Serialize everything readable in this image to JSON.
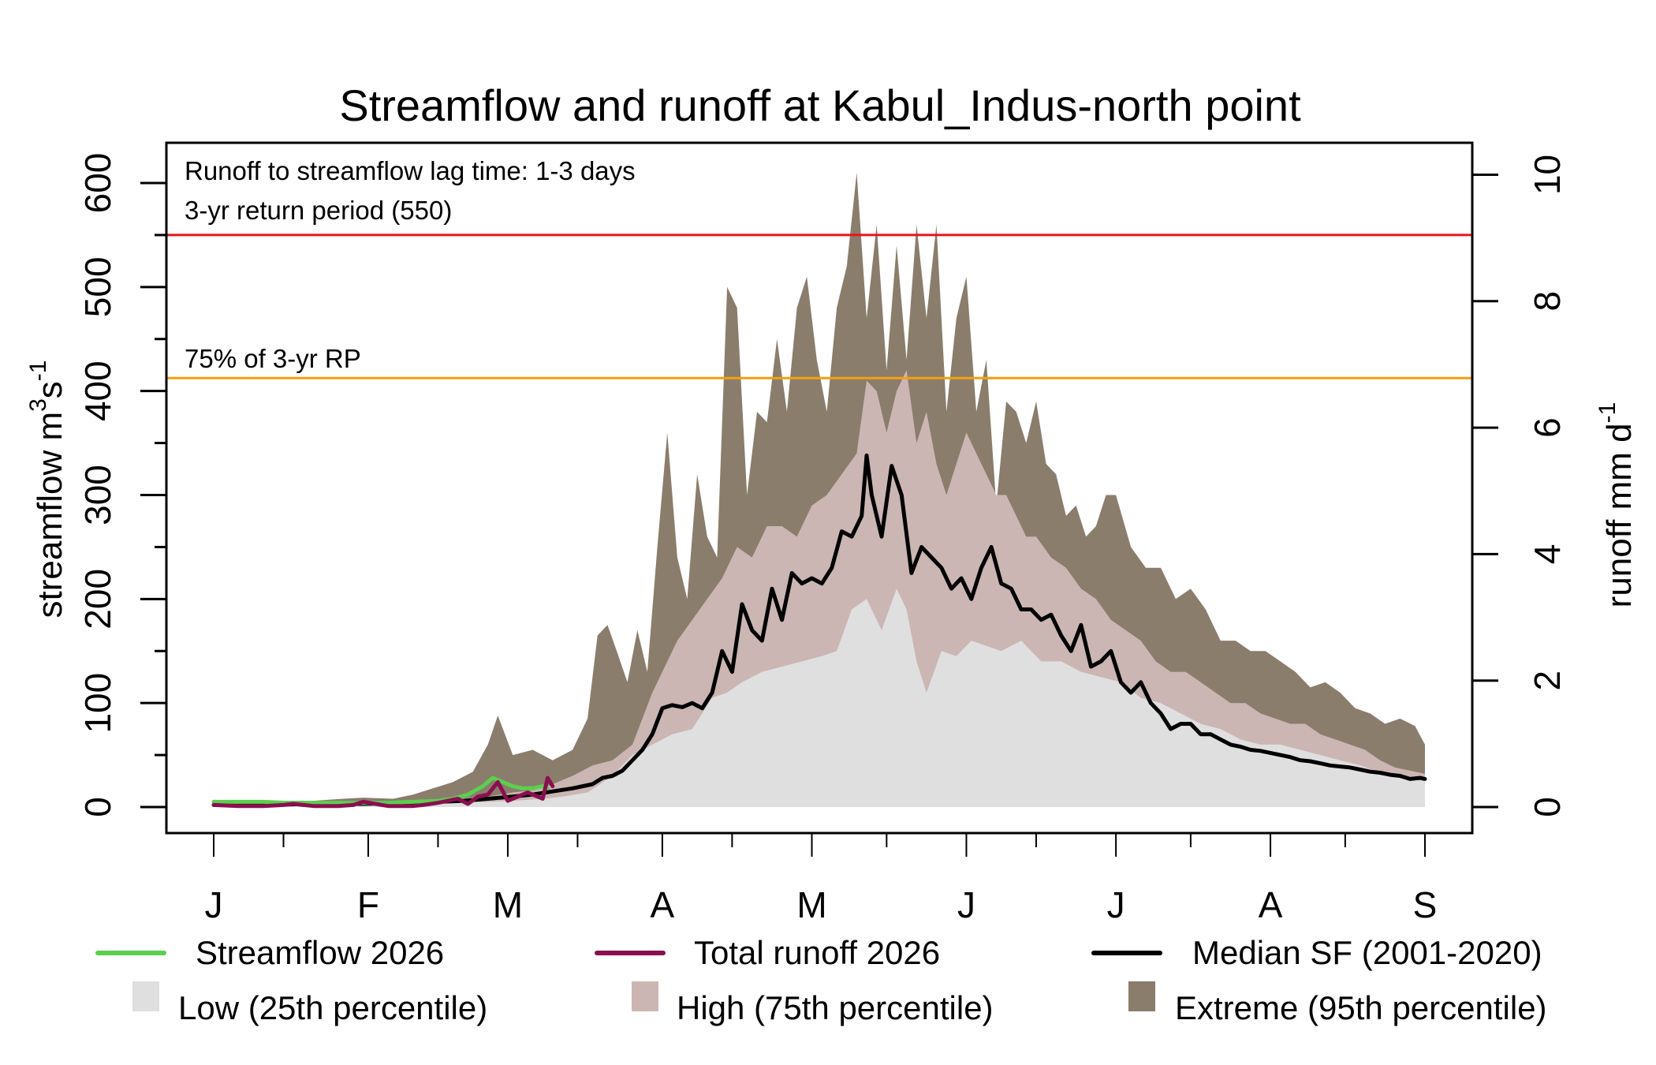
{
  "chart_data": {
    "type": "area",
    "title": "Streamflow and runoff at Kabul_Indus-north point",
    "ylabel": "streamflow m3s-1",
    "ylabel_parts": {
      "base": "streamflow m",
      "sup1": "3",
      "mid": "s",
      "sup2": "-1"
    },
    "y2label": "runoff mm d-1",
    "y2label_parts": {
      "base": "runoff mm d",
      "sup": "-1"
    },
    "xlabel": "",
    "ylim": [
      0,
      600
    ],
    "y_ticks": [
      0,
      100,
      200,
      300,
      400,
      500,
      600
    ],
    "y2lim": [
      0,
      10
    ],
    "y2_ticks": [
      0,
      2,
      4,
      6,
      8,
      10
    ],
    "y2_to_y_factor": 60.8,
    "x_unit": "day of year (0 = Jan 1)",
    "x_ticks_major": [
      {
        "day": 0,
        "label": "J"
      },
      {
        "day": 31,
        "label": "F"
      },
      {
        "day": 59,
        "label": "M"
      },
      {
        "day": 90,
        "label": "A"
      },
      {
        "day": 120,
        "label": "M"
      },
      {
        "day": 151,
        "label": "J"
      },
      {
        "day": 181,
        "label": "J"
      },
      {
        "day": 212,
        "label": "A"
      },
      {
        "day": 243,
        "label": "S"
      }
    ],
    "x_ticks_minor": [
      14,
      45,
      73,
      104,
      135,
      165,
      196,
      227
    ],
    "xlim": [
      -10,
      252
    ],
    "annotations": [
      {
        "text": "Runoff to streamflow lag time: 1-3 days"
      },
      {
        "text": "3-yr return period (550)"
      },
      {
        "text": "75% of 3-yr RP"
      }
    ],
    "hlines": [
      {
        "name": "3-yr return period",
        "value": 550,
        "color": "#e8141a"
      },
      {
        "name": "75% of 3-yr RP",
        "value": 412.5,
        "color": "#f5a10f"
      }
    ],
    "legend_position": "bottom",
    "legend": [
      {
        "label": "Streamflow 2026",
        "kind": "line",
        "color": "#5ccf4f"
      },
      {
        "label": "Total runoff 2026",
        "kind": "line",
        "color": "#8a0f4f"
      },
      {
        "label": "Median SF (2001-2020)",
        "kind": "line",
        "color": "#000000"
      },
      {
        "label": "Low (25th percentile)",
        "kind": "fill",
        "color": "#dfdfdf"
      },
      {
        "label": "High (75th percentile)",
        "kind": "fill",
        "color": "#cbb6b4"
      },
      {
        "label": "Extreme (95th percentile)",
        "kind": "fill",
        "color": "#8a7d6c"
      }
    ],
    "series": [
      {
        "name": "Extreme (95th percentile)",
        "color": "#8a7d6c",
        "days": [
          0,
          10,
          20,
          26,
          30,
          36,
          40,
          44,
          48,
          52,
          55,
          57,
          60,
          64,
          68,
          72,
          75,
          77,
          79,
          81,
          83,
          85,
          87,
          89,
          91,
          93,
          95,
          97,
          99,
          101,
          103,
          105,
          107,
          109,
          111,
          113,
          115,
          117,
          119,
          121,
          123,
          125,
          127,
          129,
          131,
          133,
          135,
          137,
          139,
          141,
          143,
          145,
          147,
          149,
          151,
          153,
          155,
          157,
          159,
          161,
          163,
          165,
          167,
          169,
          171,
          173,
          175,
          177,
          179,
          181,
          184,
          187,
          190,
          193,
          196,
          199,
          202,
          205,
          208,
          211,
          214,
          217,
          220,
          223,
          226,
          229,
          232,
          235,
          238,
          241,
          243
        ],
        "values": [
          6,
          6,
          6,
          8,
          9,
          8,
          12,
          18,
          24,
          34,
          60,
          88,
          50,
          55,
          45,
          55,
          85,
          165,
          175,
          148,
          120,
          170,
          130,
          250,
          360,
          240,
          200,
          320,
          260,
          240,
          500,
          480,
          300,
          380,
          370,
          450,
          380,
          480,
          510,
          430,
          380,
          480,
          520,
          610,
          470,
          560,
          420,
          540,
          430,
          560,
          470,
          560,
          380,
          470,
          510,
          380,
          430,
          290,
          390,
          380,
          350,
          390,
          330,
          320,
          280,
          290,
          260,
          270,
          300,
          300,
          250,
          230,
          230,
          200,
          210,
          190,
          160,
          160,
          150,
          150,
          140,
          130,
          115,
          120,
          110,
          95,
          90,
          80,
          85,
          78,
          60
        ]
      },
      {
        "name": "High (75th percentile)",
        "color": "#cbb6b4",
        "days": [
          0,
          10,
          20,
          30,
          40,
          48,
          55,
          60,
          64,
          68,
          72,
          76,
          80,
          84,
          88,
          90,
          93,
          96,
          99,
          102,
          105,
          108,
          111,
          114,
          117,
          120,
          123,
          126,
          129,
          131,
          133,
          135,
          137,
          139,
          141,
          143,
          145,
          147,
          149,
          151,
          153,
          155,
          157,
          159,
          161,
          163,
          165,
          168,
          171,
          174,
          177,
          180,
          183,
          186,
          189,
          192,
          195,
          198,
          201,
          204,
          207,
          210,
          213,
          216,
          219,
          222,
          225,
          228,
          231,
          234,
          237,
          240,
          243
        ],
        "values": [
          4,
          4,
          4,
          5,
          6,
          8,
          10,
          14,
          16,
          22,
          30,
          40,
          45,
          60,
          110,
          130,
          160,
          180,
          200,
          220,
          250,
          240,
          270,
          270,
          260,
          290,
          300,
          320,
          340,
          410,
          400,
          360,
          400,
          420,
          350,
          380,
          330,
          300,
          330,
          360,
          340,
          320,
          300,
          300,
          280,
          260,
          260,
          240,
          230,
          210,
          200,
          180,
          170,
          160,
          140,
          130,
          130,
          120,
          110,
          100,
          100,
          90,
          85,
          80,
          80,
          70,
          65,
          60,
          55,
          45,
          38,
          35,
          32
        ]
      },
      {
        "name": "Low (25th percentile)",
        "color": "#dfdfdf",
        "days": [
          0,
          10,
          20,
          30,
          40,
          50,
          60,
          66,
          70,
          75,
          80,
          84,
          88,
          92,
          96,
          100,
          103,
          106,
          110,
          114,
          118,
          122,
          125,
          128,
          131,
          134,
          137,
          139,
          141,
          143,
          146,
          149,
          152,
          155,
          158,
          162,
          166,
          170,
          174,
          178,
          182,
          186,
          190,
          194,
          198,
          202,
          206,
          210,
          214,
          218,
          222,
          226,
          230,
          234,
          238,
          243
        ],
        "values": [
          3,
          3,
          3,
          3,
          3,
          4,
          6,
          8,
          10,
          14,
          30,
          50,
          60,
          70,
          75,
          105,
          110,
          120,
          130,
          135,
          140,
          145,
          150,
          190,
          200,
          170,
          210,
          190,
          140,
          110,
          150,
          145,
          160,
          155,
          150,
          160,
          140,
          140,
          130,
          125,
          120,
          105,
          100,
          90,
          80,
          75,
          65,
          60,
          60,
          55,
          50,
          45,
          40,
          33,
          30,
          28
        ]
      },
      {
        "name": "Median SF (2001-2020)",
        "color": "#000000",
        "days": [
          0,
          10,
          20,
          30,
          40,
          50,
          55,
          60,
          64,
          68,
          72,
          76,
          78,
          80,
          82,
          84,
          86,
          88,
          90,
          92,
          94,
          96,
          98,
          100,
          102,
          104,
          106,
          108,
          110,
          112,
          114,
          116,
          118,
          120,
          122,
          124,
          126,
          128,
          130,
          131,
          132,
          134,
          136,
          138,
          140,
          142,
          144,
          146,
          148,
          150,
          152,
          154,
          156,
          158,
          160,
          162,
          164,
          166,
          168,
          170,
          172,
          174,
          176,
          178,
          180,
          182,
          184,
          186,
          188,
          190,
          192,
          194,
          196,
          198,
          200,
          202,
          204,
          206,
          208,
          210,
          212,
          214,
          216,
          218,
          220,
          222,
          224,
          226,
          228,
          230,
          232,
          234,
          236,
          238,
          240,
          242,
          243
        ],
        "values": [
          2,
          2,
          3,
          3,
          4,
          6,
          8,
          10,
          12,
          15,
          18,
          22,
          28,
          30,
          35,
          45,
          55,
          70,
          95,
          98,
          96,
          100,
          95,
          110,
          150,
          130,
          195,
          170,
          160,
          210,
          180,
          225,
          215,
          220,
          215,
          230,
          265,
          260,
          280,
          338,
          300,
          260,
          328,
          300,
          225,
          250,
          240,
          230,
          210,
          220,
          200,
          230,
          250,
          215,
          210,
          190,
          190,
          180,
          185,
          165,
          150,
          175,
          135,
          140,
          150,
          120,
          110,
          120,
          100,
          90,
          75,
          80,
          80,
          70,
          70,
          65,
          60,
          58,
          55,
          54,
          52,
          50,
          48,
          45,
          44,
          42,
          40,
          39,
          38,
          36,
          34,
          33,
          31,
          30,
          27,
          28,
          27
        ]
      },
      {
        "name": "Streamflow 2026",
        "color": "#5ccf4f",
        "days": [
          0,
          5,
          10,
          15,
          20,
          25,
          30,
          35,
          40,
          45,
          48,
          51,
          54,
          56,
          58,
          60,
          62,
          64,
          66,
          67
        ],
        "values": [
          5,
          5,
          5,
          4,
          4,
          4,
          4,
          4,
          5,
          6,
          8,
          12,
          20,
          28,
          24,
          20,
          18,
          18,
          20,
          18
        ]
      },
      {
        "name": "Total runoff 2026",
        "color": "#8a0f4f",
        "days": [
          0,
          5,
          10,
          14,
          16,
          20,
          25,
          28,
          30,
          35,
          40,
          42,
          45,
          47,
          49,
          51,
          53,
          55,
          57,
          59,
          61,
          63,
          65,
          66,
          67,
          68
        ],
        "values": [
          2,
          1,
          1,
          2,
          3,
          1,
          1,
          2,
          5,
          1,
          1,
          2,
          4,
          6,
          8,
          3,
          10,
          12,
          24,
          6,
          10,
          14,
          10,
          8,
          28,
          20
        ]
      }
    ]
  }
}
